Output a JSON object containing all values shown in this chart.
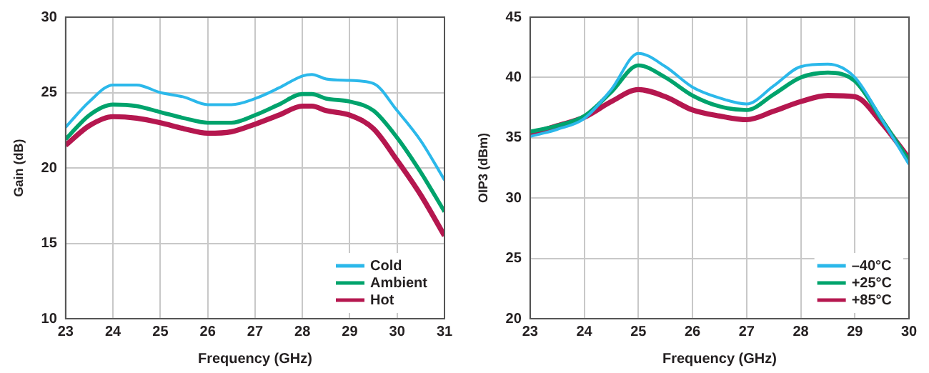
{
  "chart_data": [
    {
      "type": "line",
      "xlabel": "Frequency (GHz)",
      "ylabel": "Gain (dB)",
      "xlim": [
        23,
        31
      ],
      "xticks": [
        23,
        24,
        25,
        26,
        27,
        28,
        29,
        30,
        31
      ],
      "ylim": [
        10,
        30
      ],
      "yticks": [
        10,
        15,
        20,
        25,
        30
      ],
      "grid": true,
      "legend": "bottom right",
      "marker": "none",
      "line_style": "solid",
      "x": [
        23,
        23.5,
        24,
        24.5,
        25,
        25.5,
        26,
        26.5,
        27,
        27.5,
        28,
        28.2,
        28.5,
        29,
        29.5,
        30,
        30.5,
        31
      ],
      "series": [
        {
          "name": "Cold",
          "color": "#2bb8ea",
          "values": [
            22.7,
            24.4,
            25.5,
            25.5,
            25.0,
            24.7,
            24.2,
            24.2,
            24.6,
            25.3,
            26.1,
            26.2,
            25.9,
            25.8,
            25.6,
            23.8,
            21.8,
            19.2
          ]
        },
        {
          "name": "Ambient",
          "color": "#00a36c",
          "values": [
            21.9,
            23.5,
            24.2,
            24.1,
            23.7,
            23.3,
            23.0,
            23.0,
            23.5,
            24.2,
            24.9,
            24.9,
            24.6,
            24.4,
            23.8,
            22.0,
            19.7,
            17.1
          ]
        },
        {
          "name": "Hot",
          "color": "#b5174f",
          "values": [
            21.5,
            22.8,
            23.4,
            23.3,
            23.0,
            22.6,
            22.3,
            22.4,
            22.9,
            23.5,
            24.1,
            24.1,
            23.8,
            23.5,
            22.6,
            20.5,
            18.2,
            15.5
          ]
        }
      ]
    },
    {
      "type": "line",
      "xlabel": "Frequency (GHz)",
      "ylabel": "OIP3 (dBm)",
      "xlim": [
        23,
        30
      ],
      "xticks": [
        23,
        24,
        25,
        26,
        27,
        28,
        29,
        30
      ],
      "ylim": [
        20,
        45
      ],
      "yticks": [
        20,
        25,
        30,
        35,
        40,
        45
      ],
      "grid": true,
      "legend": "bottom right",
      "marker": "none",
      "line_style": "solid",
      "x": [
        23,
        23.5,
        24,
        24.5,
        25,
        25.5,
        26,
        26.5,
        27,
        27.5,
        28,
        28.5,
        29,
        29.5,
        30
      ],
      "series": [
        {
          "name": "–40°C",
          "color": "#2bb8ea",
          "values": [
            35.1,
            35.7,
            36.6,
            39.0,
            42.0,
            40.9,
            39.2,
            38.3,
            37.8,
            39.3,
            40.9,
            41.1,
            40.0,
            36.5,
            32.8
          ]
        },
        {
          "name": "+25°C",
          "color": "#00a36c",
          "values": [
            35.5,
            36.0,
            36.8,
            38.8,
            41.0,
            40.0,
            38.5,
            37.6,
            37.3,
            38.6,
            40.0,
            40.4,
            39.7,
            36.5,
            33.1
          ]
        },
        {
          "name": "+85°C",
          "color": "#b5174f",
          "values": [
            35.3,
            36.0,
            36.7,
            38.0,
            39.0,
            38.4,
            37.3,
            36.8,
            36.5,
            37.2,
            38.0,
            38.5,
            38.4,
            36.2,
            33.3
          ]
        }
      ]
    }
  ]
}
